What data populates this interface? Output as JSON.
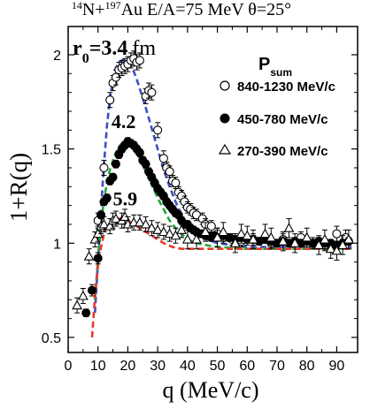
{
  "chart_data": {
    "type": "scatter",
    "title": {
      "n_mass": "14",
      "n_sym": "N+",
      "au_mass": "197",
      "au_sym": "Au E/A=75 MeV θ=25°"
    },
    "xlabel": "q (MeV/c)",
    "ylabel": "1+R(q)",
    "xlim": [
      0,
      97
    ],
    "ylim": [
      0.42,
      2.15
    ],
    "xticks": [
      0,
      10,
      20,
      30,
      40,
      50,
      60,
      70,
      80,
      90
    ],
    "yticks": [
      0.5,
      1,
      1.5,
      2
    ],
    "ytick_labels": [
      "0.5",
      "1",
      "1.5",
      "2"
    ],
    "legend": {
      "title_main": "P",
      "title_sub": "sum",
      "placement": "top-right",
      "entries": [
        "840-1230 MeV/c",
        "450-780 MeV/c",
        "270-390 MeV/c"
      ]
    },
    "annotations": {
      "r0_label": "r",
      "r0_sub": "0",
      "r0_value": "=3.4",
      "r0_unit": "fm",
      "second": "4.2",
      "third": "5.9"
    },
    "annotation_positions": {
      "r0": [
        1.5,
        2.0
      ],
      "second": [
        14.5,
        1.61
      ],
      "third": [
        15.0,
        1.2
      ]
    },
    "grid": false,
    "colors": {
      "curve_r34": "#3b4fc4",
      "curve_r42": "#1faa3a",
      "curve_r59": "#e8382c",
      "markers": "#000000"
    },
    "series": [
      {
        "name": "840-1230 MeV/c",
        "marker": "open-circle",
        "points": [
          [
            10,
            1.12
          ],
          [
            12,
            1.4
          ],
          [
            14,
            1.76
          ],
          [
            15,
            1.85
          ],
          [
            16,
            1.88
          ],
          [
            17,
            1.92
          ],
          [
            18,
            1.93
          ],
          [
            19,
            1.94
          ],
          [
            20,
            1.95
          ],
          [
            21,
            1.97
          ],
          [
            22,
            1.98
          ],
          [
            23,
            1.96
          ],
          [
            24,
            1.97
          ],
          [
            26,
            1.78
          ],
          [
            27,
            1.81
          ],
          [
            28,
            1.8
          ],
          [
            30,
            1.6
          ],
          [
            32,
            1.45
          ],
          [
            33,
            1.4
          ],
          [
            34,
            1.38
          ],
          [
            35,
            1.33
          ],
          [
            36,
            1.32
          ],
          [
            37,
            1.27
          ],
          [
            38,
            1.25
          ],
          [
            39,
            1.22
          ],
          [
            40,
            1.19
          ],
          [
            41,
            1.18
          ],
          [
            42,
            1.16
          ],
          [
            43,
            1.15
          ],
          [
            45,
            1.13
          ],
          [
            46,
            1.1
          ],
          [
            48,
            1.09
          ],
          [
            50,
            1.05
          ],
          [
            52,
            1.03
          ],
          [
            55,
            1.02
          ],
          [
            58,
            1.01
          ],
          [
            62,
            1.02
          ],
          [
            68,
            1.0
          ],
          [
            72,
            1.02
          ],
          [
            78,
            1.03
          ],
          [
            82,
            1.0
          ],
          [
            86,
            0.99
          ],
          [
            90,
            1.05
          ],
          [
            93,
            1.03
          ]
        ],
        "errors": [
          0.04,
          0.04,
          0.04,
          0.04,
          0.04,
          0.04,
          0.04,
          0.04,
          0.04,
          0.04,
          0.04,
          0.04,
          0.04,
          0.04,
          0.04,
          0.04,
          0.04,
          0.04,
          0.03,
          0.03,
          0.03,
          0.03,
          0.03,
          0.03,
          0.03,
          0.03,
          0.03,
          0.03,
          0.03,
          0.03,
          0.03,
          0.03,
          0.03,
          0.03,
          0.03,
          0.03,
          0.03,
          0.03,
          0.03,
          0.03,
          0.03,
          0.03,
          0.04,
          0.04
        ]
      },
      {
        "name": "450-780 MeV/c",
        "marker": "filled-circle",
        "points": [
          [
            6,
            0.63
          ],
          [
            8,
            0.75
          ],
          [
            10,
            0.92
          ],
          [
            11,
            1.15
          ],
          [
            12,
            1.22
          ],
          [
            13,
            1.24
          ],
          [
            14,
            1.33
          ],
          [
            15,
            1.35
          ],
          [
            16,
            1.42
          ],
          [
            17,
            1.47
          ],
          [
            18,
            1.5
          ],
          [
            19,
            1.52
          ],
          [
            20,
            1.54
          ],
          [
            21,
            1.53
          ],
          [
            22,
            1.52
          ],
          [
            23,
            1.5
          ],
          [
            24,
            1.48
          ],
          [
            25,
            1.44
          ],
          [
            26,
            1.42
          ],
          [
            27,
            1.38
          ],
          [
            28,
            1.35
          ],
          [
            29,
            1.32
          ],
          [
            30,
            1.29
          ],
          [
            31,
            1.27
          ],
          [
            32,
            1.25
          ],
          [
            33,
            1.22
          ],
          [
            34,
            1.2
          ],
          [
            35,
            1.18
          ],
          [
            36,
            1.16
          ],
          [
            37,
            1.15
          ],
          [
            38,
            1.12
          ],
          [
            39,
            1.1
          ],
          [
            40,
            1.1
          ],
          [
            41,
            1.08
          ],
          [
            42,
            1.07
          ],
          [
            43,
            1.06
          ],
          [
            44,
            1.05
          ],
          [
            45,
            1.05
          ],
          [
            46,
            1.04
          ],
          [
            47,
            1.04
          ],
          [
            48,
            1.03
          ],
          [
            49,
            1.04
          ],
          [
            50,
            1.03
          ],
          [
            52,
            1.04
          ],
          [
            54,
            1.03
          ],
          [
            56,
            1.02
          ],
          [
            58,
            1.03
          ],
          [
            60,
            1.02
          ],
          [
            62,
            1.02
          ],
          [
            64,
            1.01
          ],
          [
            66,
            1.02
          ],
          [
            68,
            1.01
          ],
          [
            70,
            1.0
          ],
          [
            72,
            1.01
          ],
          [
            74,
            1.0
          ],
          [
            76,
            1.01
          ],
          [
            78,
            1.0
          ],
          [
            80,
            1.01
          ],
          [
            82,
            1.0
          ],
          [
            84,
            1.01
          ],
          [
            86,
            1.0
          ],
          [
            88,
            1.0
          ],
          [
            90,
            0.99
          ],
          [
            92,
            1.0
          ],
          [
            94,
            1.01
          ]
        ],
        "errors": [
          0.02,
          0.03,
          0.03,
          0.02,
          0.02,
          0.02,
          0.02,
          0.02,
          0.02,
          0.02,
          0.02,
          0.02,
          0.02,
          0.02,
          0.02,
          0.02,
          0.02,
          0.02,
          0.02,
          0.02,
          0.02,
          0.02,
          0.02,
          0.02,
          0.02,
          0.02,
          0.02,
          0.02,
          0.02,
          0.02,
          0.02,
          0.02,
          0.02,
          0.02,
          0.02,
          0.02,
          0.02,
          0.02,
          0.02,
          0.02,
          0.02,
          0.02,
          0.02,
          0.02,
          0.02,
          0.02,
          0.02,
          0.02,
          0.02,
          0.02,
          0.02,
          0.02,
          0.02,
          0.02,
          0.02,
          0.02,
          0.02,
          0.02,
          0.02,
          0.02,
          0.02,
          0.02,
          0.02,
          0.02,
          0.02
        ]
      },
      {
        "name": "270-390 MeV/c",
        "marker": "open-triangle",
        "points": [
          [
            3,
            0.67
          ],
          [
            5,
            0.72
          ],
          [
            7,
            0.93
          ],
          [
            9,
            1.02
          ],
          [
            10,
            1.05
          ],
          [
            11,
            1.09
          ],
          [
            12,
            1.1
          ],
          [
            14,
            1.09
          ],
          [
            15,
            1.12
          ],
          [
            16,
            1.13
          ],
          [
            18,
            1.12
          ],
          [
            19,
            1.14
          ],
          [
            20,
            1.1
          ],
          [
            22,
            1.11
          ],
          [
            24,
            1.11
          ],
          [
            26,
            1.1
          ],
          [
            28,
            1.08
          ],
          [
            30,
            1.07
          ],
          [
            32,
            1.06
          ],
          [
            34,
            1.05
          ],
          [
            36,
            1.04
          ],
          [
            38,
            1.07
          ],
          [
            40,
            1.02
          ],
          [
            43,
            1.02
          ],
          [
            46,
            1.06
          ],
          [
            50,
            1.03
          ],
          [
            52,
            1.06
          ],
          [
            56,
            1.0
          ],
          [
            58,
            1.05
          ],
          [
            60,
            1.04
          ],
          [
            62,
            1.02
          ],
          [
            66,
            1.05
          ],
          [
            68,
            1.03
          ],
          [
            72,
            1.01
          ],
          [
            74,
            1.08
          ],
          [
            76,
            1.0
          ],
          [
            80,
            1.03
          ],
          [
            84,
            0.99
          ],
          [
            86,
            1.02
          ],
          [
            88,
            0.97
          ],
          [
            90,
            0.96
          ],
          [
            92,
            0.99
          ],
          [
            94,
            1.02
          ]
        ],
        "errors": [
          0.04,
          0.04,
          0.04,
          0.04,
          0.04,
          0.04,
          0.04,
          0.04,
          0.04,
          0.04,
          0.04,
          0.04,
          0.04,
          0.04,
          0.04,
          0.04,
          0.04,
          0.04,
          0.04,
          0.04,
          0.04,
          0.04,
          0.05,
          0.05,
          0.05,
          0.05,
          0.05,
          0.05,
          0.05,
          0.05,
          0.05,
          0.05,
          0.05,
          0.05,
          0.05,
          0.05,
          0.05,
          0.05,
          0.05,
          0.05,
          0.05,
          0.05,
          0.05
        ]
      }
    ],
    "curves": [
      {
        "label": "r0 = 3.4 fm",
        "color_key": "curve_r34",
        "points": [
          [
            9,
            0.63
          ],
          [
            10,
            0.9
          ],
          [
            11,
            1.18
          ],
          [
            12,
            1.42
          ],
          [
            13,
            1.62
          ],
          [
            14,
            1.77
          ],
          [
            15,
            1.87
          ],
          [
            16,
            1.93
          ],
          [
            17,
            1.96
          ],
          [
            18,
            1.97
          ],
          [
            19,
            1.97
          ],
          [
            20,
            1.96
          ],
          [
            21,
            1.94
          ],
          [
            22,
            1.91
          ],
          [
            23,
            1.87
          ],
          [
            24,
            1.82
          ],
          [
            26,
            1.72
          ],
          [
            28,
            1.61
          ],
          [
            30,
            1.5
          ],
          [
            32,
            1.39
          ],
          [
            34,
            1.3
          ],
          [
            36,
            1.22
          ],
          [
            38,
            1.15
          ],
          [
            40,
            1.1
          ],
          [
            42,
            1.06
          ],
          [
            45,
            1.03
          ],
          [
            50,
            1.0
          ],
          [
            55,
            0.99
          ],
          [
            60,
            0.98
          ],
          [
            70,
            0.98
          ],
          [
            80,
            0.98
          ],
          [
            90,
            0.98
          ],
          [
            95,
            0.98
          ]
        ]
      },
      {
        "label": "r0 = 4.2 fm",
        "color_key": "curve_r42",
        "points": [
          [
            9,
            0.7
          ],
          [
            10,
            0.92
          ],
          [
            11,
            1.1
          ],
          [
            12,
            1.23
          ],
          [
            13,
            1.32
          ],
          [
            14,
            1.39
          ],
          [
            15,
            1.44
          ],
          [
            16,
            1.48
          ],
          [
            17,
            1.51
          ],
          [
            18,
            1.53
          ],
          [
            19,
            1.54
          ],
          [
            20,
            1.54
          ],
          [
            21,
            1.53
          ],
          [
            22,
            1.51
          ],
          [
            23,
            1.48
          ],
          [
            24,
            1.45
          ],
          [
            26,
            1.38
          ],
          [
            28,
            1.31
          ],
          [
            30,
            1.24
          ],
          [
            32,
            1.18
          ],
          [
            34,
            1.12
          ],
          [
            36,
            1.08
          ],
          [
            38,
            1.05
          ],
          [
            40,
            1.02
          ],
          [
            43,
            1.0
          ],
          [
            46,
            0.99
          ],
          [
            50,
            0.98
          ],
          [
            60,
            0.97
          ],
          [
            70,
            0.97
          ],
          [
            80,
            0.97
          ],
          [
            90,
            0.97
          ],
          [
            95,
            0.97
          ]
        ]
      },
      {
        "label": "r0 = 5.9 fm",
        "color_key": "curve_r59",
        "points": [
          [
            8,
            0.5
          ],
          [
            9,
            0.72
          ],
          [
            10,
            0.88
          ],
          [
            11,
            0.98
          ],
          [
            12,
            1.05
          ],
          [
            13,
            1.09
          ],
          [
            14,
            1.11
          ],
          [
            15,
            1.12
          ],
          [
            16,
            1.13
          ],
          [
            17,
            1.13
          ],
          [
            18,
            1.13
          ],
          [
            20,
            1.12
          ],
          [
            22,
            1.1
          ],
          [
            24,
            1.08
          ],
          [
            26,
            1.06
          ],
          [
            28,
            1.04
          ],
          [
            30,
            1.02
          ],
          [
            32,
            1.0
          ],
          [
            35,
            0.98
          ],
          [
            38,
            0.97
          ],
          [
            42,
            0.97
          ],
          [
            50,
            0.97
          ],
          [
            60,
            0.97
          ],
          [
            70,
            0.97
          ],
          [
            80,
            0.97
          ],
          [
            90,
            0.97
          ],
          [
            95,
            0.97
          ]
        ]
      }
    ]
  }
}
